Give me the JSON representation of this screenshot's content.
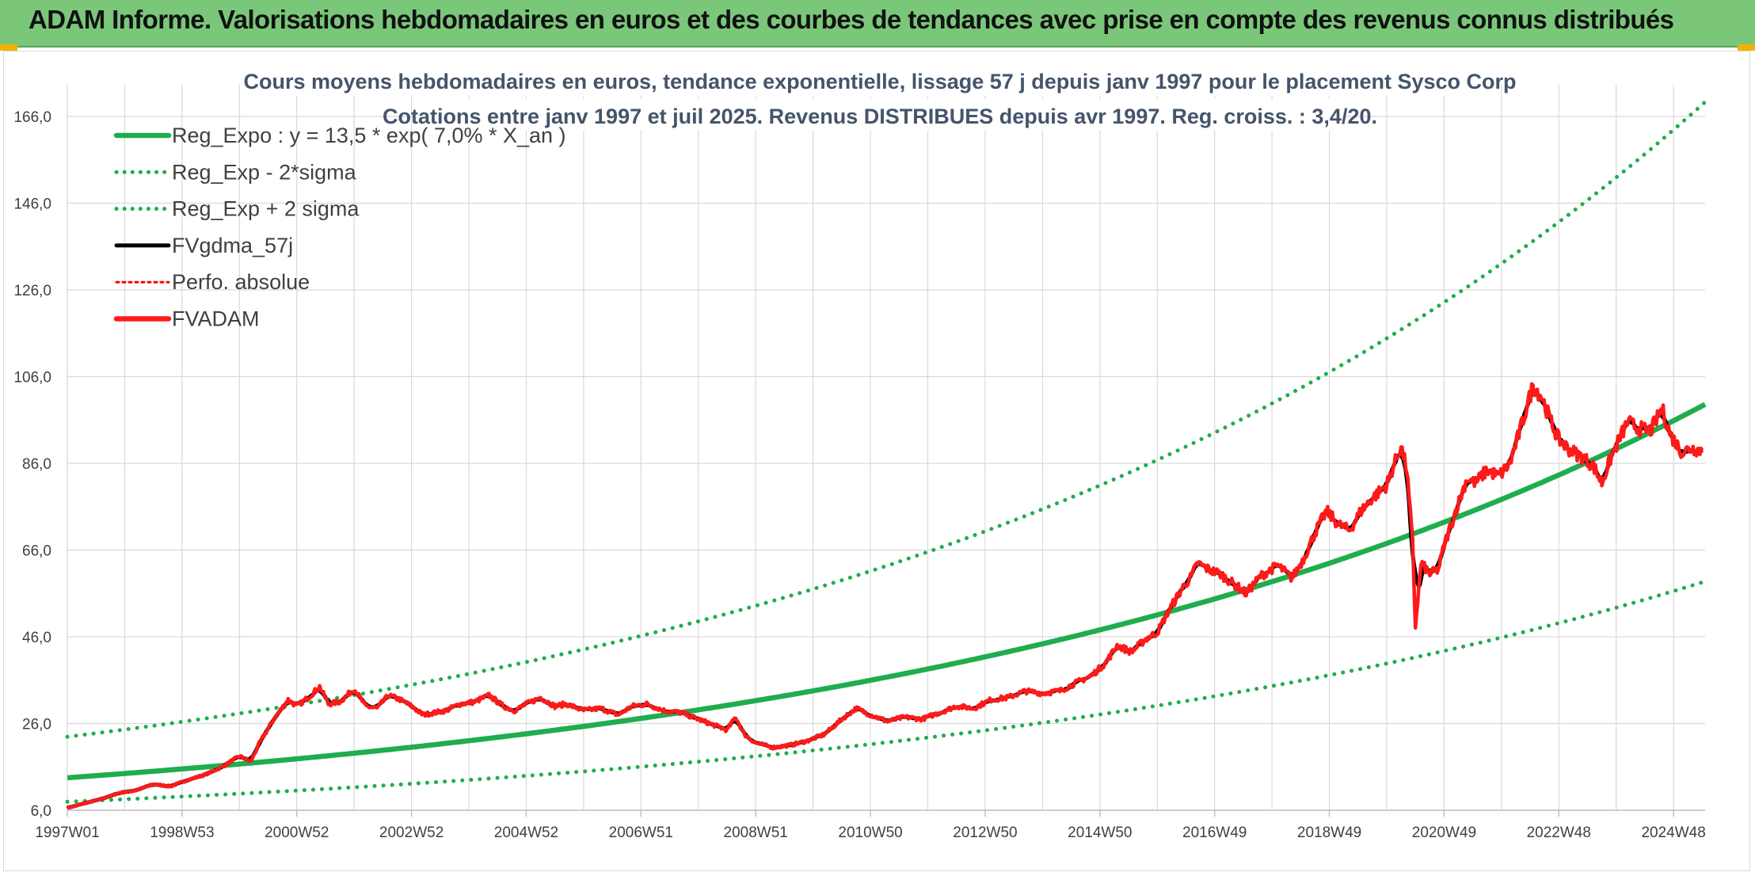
{
  "banner": {
    "title": "ADAM Informe. Valorisations hebdomadaires en euros et des courbes de tendances avec prise en compte des revenus connus distribués"
  },
  "colors": {
    "banner_bg": "#7ac77a",
    "reg_expo": "#1fad4e",
    "sigma": "#1fad4e",
    "gdma": "#000000",
    "perfo": "#ff0000",
    "fvadam": "#ff1a1a",
    "grid": "#d9d9d9",
    "title_text": "#44546a"
  },
  "chart_data": {
    "type": "line",
    "title": "Cours moyens hebdomadaires en euros, tendance exponentielle, lissage 57 j depuis janv 1997 pour le placement Sysco Corp",
    "subtitle": "Cotations entre janv 1997 et juil 2025. Revenus DISTRIBUES depuis avr 1997. Reg. croiss. : 3,4/20.",
    "xlabel": "",
    "ylabel": "",
    "ylim": [
      6,
      166
    ],
    "y_ticks": [
      "6,0",
      "26,0",
      "46,0",
      "66,0",
      "86,0",
      "106,0",
      "126,0",
      "146,0",
      "166,0"
    ],
    "x_range_years": [
      1997.0,
      2025.55
    ],
    "x_ticks": [
      {
        "label": "1997W01",
        "t": 1997.0
      },
      {
        "label": "1998W53",
        "t": 1999.0
      },
      {
        "label": "2000W52",
        "t": 2001.0
      },
      {
        "label": "2002W52",
        "t": 2003.0
      },
      {
        "label": "2004W52",
        "t": 2005.0
      },
      {
        "label": "2006W51",
        "t": 2007.0
      },
      {
        "label": "2008W51",
        "t": 2009.0
      },
      {
        "label": "2010W50",
        "t": 2011.0
      },
      {
        "label": "2012W50",
        "t": 2013.0
      },
      {
        "label": "2014W50",
        "t": 2015.0
      },
      {
        "label": "2016W49",
        "t": 2017.0
      },
      {
        "label": "2018W49",
        "t": 2019.0
      },
      {
        "label": "2020W49",
        "t": 2021.0
      },
      {
        "label": "2022W48",
        "t": 2023.0
      },
      {
        "label": "2024W48",
        "t": 2025.0
      }
    ],
    "grid": true,
    "legend_position": "top-left",
    "trend": {
      "start_value": 13.5,
      "growth_rate": 0.07,
      "low_factor": 0.59,
      "high_factor": 1.7
    },
    "series": [
      {
        "name": "Reg_Expo : y = 13,5 * exp( 7,0% *  X_an )",
        "style": "solid-thick",
        "color": "#1fad4e",
        "kind": "reg"
      },
      {
        "name": "Reg_Exp - 2*sigma",
        "style": "dotted",
        "color": "#1fad4e",
        "kind": "low"
      },
      {
        "name": "Reg_Exp + 2 sigma",
        "style": "dotted",
        "color": "#1fad4e",
        "kind": "high"
      },
      {
        "name": "FVgdma_57j",
        "style": "solid",
        "color": "#000000",
        "kind": "gdma"
      },
      {
        "name": "Perfo. absolue",
        "style": "dotted",
        "color": "#ff0000",
        "kind": "perfo"
      },
      {
        "name": "FVADAM",
        "style": "solid-thick",
        "color": "#ff1a1a",
        "kind": "fvadam"
      }
    ],
    "fvadam_points": [
      [
        1997.0,
        6.5
      ],
      [
        1997.3,
        7.6
      ],
      [
        1997.6,
        8.6
      ],
      [
        1997.9,
        10.0
      ],
      [
        1998.2,
        10.6
      ],
      [
        1998.5,
        12.0
      ],
      [
        1998.8,
        11.5
      ],
      [
        1999.1,
        13.0
      ],
      [
        1999.4,
        14.2
      ],
      [
        1999.7,
        16.0
      ],
      [
        2000.0,
        18.5
      ],
      [
        2000.2,
        17.2
      ],
      [
        2000.35,
        21.5
      ],
      [
        2000.6,
        27.0
      ],
      [
        2000.85,
        31.5
      ],
      [
        2001.0,
        30.0
      ],
      [
        2001.2,
        32.0
      ],
      [
        2001.4,
        34.5
      ],
      [
        2001.55,
        30.5
      ],
      [
        2001.75,
        31.0
      ],
      [
        2002.0,
        34.0
      ],
      [
        2002.2,
        30.0
      ],
      [
        2002.4,
        29.5
      ],
      [
        2002.6,
        32.5
      ],
      [
        2002.8,
        31.5
      ],
      [
        2003.0,
        30.0
      ],
      [
        2003.2,
        28.0
      ],
      [
        2003.4,
        28.5
      ],
      [
        2003.6,
        29.0
      ],
      [
        2003.85,
        30.5
      ],
      [
        2004.1,
        31.0
      ],
      [
        2004.35,
        32.5
      ],
      [
        2004.6,
        30.0
      ],
      [
        2004.8,
        29.0
      ],
      [
        2005.0,
        30.5
      ],
      [
        2005.25,
        32.0
      ],
      [
        2005.5,
        30.0
      ],
      [
        2005.7,
        30.5
      ],
      [
        2006.0,
        29.0
      ],
      [
        2006.3,
        29.5
      ],
      [
        2006.6,
        28.0
      ],
      [
        2006.85,
        30.0
      ],
      [
        2007.1,
        30.5
      ],
      [
        2007.4,
        29.0
      ],
      [
        2007.7,
        28.5
      ],
      [
        2008.0,
        27.0
      ],
      [
        2008.3,
        25.5
      ],
      [
        2008.5,
        24.5
      ],
      [
        2008.65,
        27.5
      ],
      [
        2008.8,
        23.5
      ],
      [
        2009.0,
        21.5
      ],
      [
        2009.3,
        20.5
      ],
      [
        2009.6,
        21.0
      ],
      [
        2009.9,
        22.0
      ],
      [
        2010.2,
        23.5
      ],
      [
        2010.5,
        27.0
      ],
      [
        2010.75,
        29.5
      ],
      [
        2011.0,
        28.0
      ],
      [
        2011.3,
        26.5
      ],
      [
        2011.6,
        27.5
      ],
      [
        2011.9,
        27.0
      ],
      [
        2012.2,
        28.5
      ],
      [
        2012.5,
        30.0
      ],
      [
        2012.8,
        29.5
      ],
      [
        2013.1,
        31.5
      ],
      [
        2013.4,
        32.0
      ],
      [
        2013.7,
        33.5
      ],
      [
        2014.0,
        33.0
      ],
      [
        2014.3,
        33.5
      ],
      [
        2014.6,
        35.5
      ],
      [
        2014.85,
        37.0
      ],
      [
        2015.1,
        40.0
      ],
      [
        2015.3,
        44.0
      ],
      [
        2015.55,
        42.5
      ],
      [
        2015.8,
        45.5
      ],
      [
        2016.0,
        47.0
      ],
      [
        2016.2,
        52.0
      ],
      [
        2016.45,
        57.5
      ],
      [
        2016.6,
        60.0
      ],
      [
        2016.7,
        63.0
      ],
      [
        2016.9,
        61.5
      ],
      [
        2017.1,
        60.5
      ],
      [
        2017.3,
        58.5
      ],
      [
        2017.55,
        56.0
      ],
      [
        2017.8,
        60.0
      ],
      [
        2018.1,
        62.5
      ],
      [
        2018.35,
        59.5
      ],
      [
        2018.55,
        64.0
      ],
      [
        2018.75,
        70.0
      ],
      [
        2018.95,
        75.0
      ],
      [
        2019.15,
        72.0
      ],
      [
        2019.35,
        70.5
      ],
      [
        2019.55,
        75.0
      ],
      [
        2019.75,
        78.0
      ],
      [
        2020.0,
        81.0
      ],
      [
        2020.15,
        86.5
      ],
      [
        2020.25,
        90.0
      ],
      [
        2020.35,
        84.5
      ],
      [
        2020.45,
        68.0
      ],
      [
        2020.5,
        48.5
      ],
      [
        2020.6,
        63.0
      ],
      [
        2020.75,
        60.5
      ],
      [
        2020.9,
        61.5
      ],
      [
        2021.0,
        67.0
      ],
      [
        2021.2,
        75.0
      ],
      [
        2021.4,
        82.5
      ],
      [
        2021.55,
        81.5
      ],
      [
        2021.75,
        84.5
      ],
      [
        2021.95,
        83.0
      ],
      [
        2022.15,
        86.0
      ],
      [
        2022.4,
        97.0
      ],
      [
        2022.55,
        104.0
      ],
      [
        2022.7,
        101.5
      ],
      [
        2022.85,
        96.0
      ],
      [
        2023.0,
        91.5
      ],
      [
        2023.2,
        89.0
      ],
      [
        2023.4,
        87.5
      ],
      [
        2023.6,
        85.5
      ],
      [
        2023.75,
        81.5
      ],
      [
        2023.9,
        87.0
      ],
      [
        2024.05,
        91.5
      ],
      [
        2024.2,
        95.5
      ],
      [
        2024.4,
        94.0
      ],
      [
        2024.6,
        93.5
      ],
      [
        2024.8,
        98.5
      ],
      [
        2024.95,
        92.5
      ],
      [
        2025.15,
        88.5
      ],
      [
        2025.3,
        89.5
      ],
      [
        2025.5,
        89.0
      ]
    ]
  }
}
